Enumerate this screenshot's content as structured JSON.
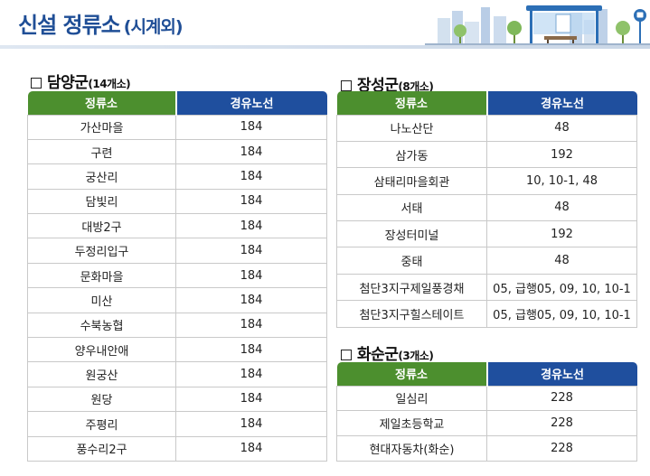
{
  "header": {
    "title": "신설 정류소",
    "subtitle": "(시계외)"
  },
  "colors": {
    "title": "#1f4e96",
    "stop_header": "#4c8f2e",
    "route_header": "#1f4f9e"
  },
  "icons": [
    "checkbox-icon",
    "bus-stop-shelter-icon",
    "bus-sign-icon",
    "tree-icon",
    "city-skyline-icon"
  ],
  "damyang": {
    "name": "담양군",
    "count": "(14개소)",
    "col_stop": "정류소",
    "col_route": "경유노선",
    "rows": [
      {
        "stop": "가산마을",
        "route": "184"
      },
      {
        "stop": "구련",
        "route": "184"
      },
      {
        "stop": "궁산리",
        "route": "184"
      },
      {
        "stop": "담빛리",
        "route": "184"
      },
      {
        "stop": "대방2구",
        "route": "184"
      },
      {
        "stop": "두정리입구",
        "route": "184"
      },
      {
        "stop": "문화마을",
        "route": "184"
      },
      {
        "stop": "미산",
        "route": "184"
      },
      {
        "stop": "수북농협",
        "route": "184"
      },
      {
        "stop": "양우내안애",
        "route": "184"
      },
      {
        "stop": "원궁산",
        "route": "184"
      },
      {
        "stop": "원당",
        "route": "184"
      },
      {
        "stop": "주평리",
        "route": "184"
      },
      {
        "stop": "풍수리2구",
        "route": "184"
      }
    ]
  },
  "jangseong": {
    "name": "장성군",
    "count": "(8개소)",
    "col_stop": "정류소",
    "col_route": "경유노선",
    "rows": [
      {
        "stop": "나노산단",
        "route": "48"
      },
      {
        "stop": "삼가동",
        "route": "192"
      },
      {
        "stop": "삼태리마을회관",
        "route": "10, 10-1, 48"
      },
      {
        "stop": "서태",
        "route": "48"
      },
      {
        "stop": "장성터미널",
        "route": "192"
      },
      {
        "stop": "중태",
        "route": "48"
      },
      {
        "stop": "첨단3지구제일풍경채",
        "route": "05, 급행05, 09, 10, 10-1"
      },
      {
        "stop": "첨단3지구힐스테이트",
        "route": "05, 급행05, 09, 10, 10-1"
      }
    ]
  },
  "hwasun": {
    "name": "화순군",
    "count": "(3개소)",
    "col_stop": "정류소",
    "col_route": "경유노선",
    "rows": [
      {
        "stop": "일심리",
        "route": "228"
      },
      {
        "stop": "제일초등학교",
        "route": "228"
      },
      {
        "stop": "현대자동차(화순)",
        "route": "228"
      }
    ]
  }
}
